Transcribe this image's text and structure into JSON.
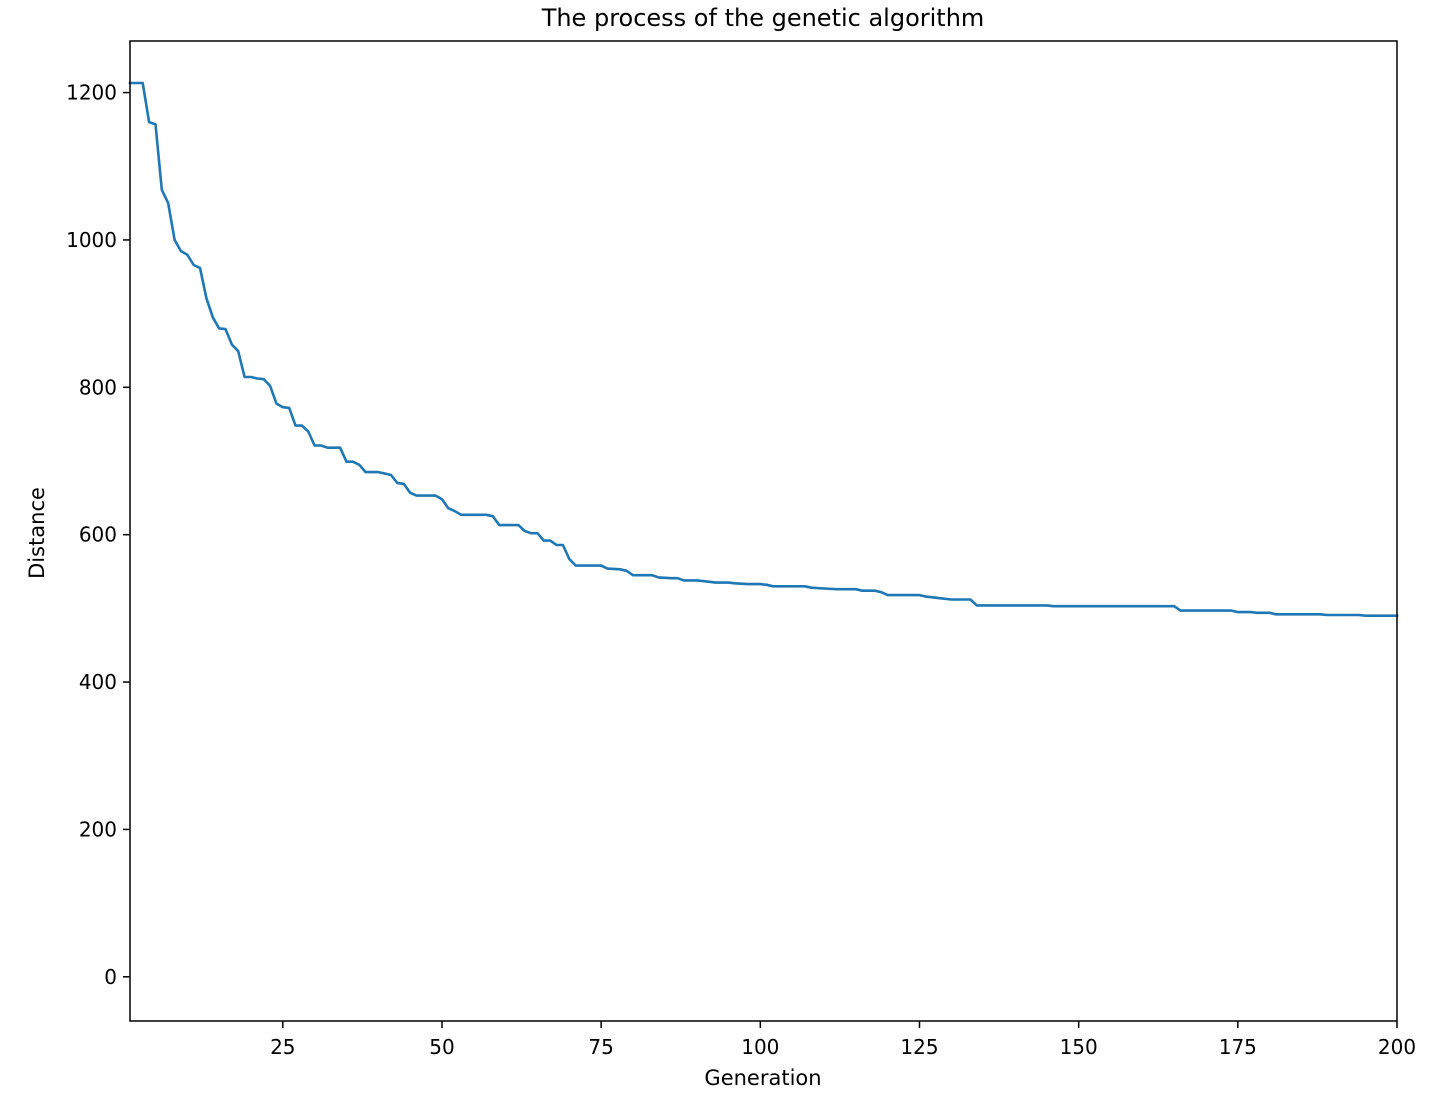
{
  "chart_data": {
    "type": "line",
    "title": "The process of the genetic algorithm",
    "xlabel": "Generation",
    "ylabel": "Distance",
    "xlim": [
      1,
      200
    ],
    "ylim": [
      -60,
      1270
    ],
    "x_ticks": [
      25,
      50,
      75,
      100,
      125,
      150,
      175,
      200
    ],
    "y_ticks": [
      0,
      200,
      400,
      600,
      800,
      1000,
      1200
    ],
    "x_tick_labels": [
      "25",
      "50",
      "75",
      "100",
      "125",
      "150",
      "175",
      "200"
    ],
    "y_tick_labels": [
      "0",
      "200",
      "400",
      "600",
      "800",
      "1000",
      "1200"
    ],
    "grid": false,
    "legend": "none",
    "series": [
      {
        "color": "#1f77b4",
        "x": [
          1,
          3,
          4,
          5,
          6,
          7,
          8,
          9,
          10,
          11,
          12,
          13,
          14,
          15,
          16,
          17,
          18,
          19,
          20,
          21,
          22,
          23,
          24,
          25,
          26,
          27,
          28,
          29,
          30,
          31,
          32,
          33,
          34,
          35,
          36,
          37,
          38,
          39,
          40,
          41,
          42,
          43,
          44,
          45,
          46,
          48,
          49,
          50,
          51,
          52,
          53,
          55,
          57,
          58,
          59,
          60,
          62,
          63,
          64,
          65,
          66,
          67,
          68,
          69,
          70,
          71,
          72,
          74,
          75,
          76,
          78,
          79,
          80,
          82,
          83,
          84,
          86,
          87,
          88,
          90,
          91,
          93,
          95,
          96,
          98,
          100,
          101,
          102,
          103,
          105,
          107,
          108,
          110,
          112,
          115,
          116,
          118,
          119,
          120,
          121,
          123,
          125,
          126,
          127,
          128,
          130,
          133,
          134,
          136,
          140,
          145,
          146,
          150,
          155,
          160,
          165,
          166,
          168,
          170,
          174,
          175,
          177,
          178,
          180,
          181,
          183,
          188,
          189,
          194,
          195,
          200
        ],
        "y": [
          1213,
          1213,
          1160,
          1157,
          1068,
          1050,
          1000,
          985,
          980,
          966,
          962,
          921,
          895,
          880,
          879,
          858,
          849,
          814,
          814,
          812,
          811,
          802,
          778,
          773,
          772,
          748,
          748,
          740,
          721,
          721,
          718,
          718,
          718,
          699,
          699,
          695,
          685,
          685,
          685,
          683,
          681,
          670,
          669,
          657,
          653,
          653,
          653,
          648,
          636,
          632,
          627,
          627,
          627,
          625,
          613,
          613,
          613,
          605,
          602,
          602,
          592,
          592,
          586,
          586,
          567,
          558,
          558,
          558,
          558,
          554,
          553,
          551,
          545,
          545,
          545,
          542,
          541,
          541,
          538,
          538,
          537,
          535,
          535,
          534,
          533,
          533,
          532,
          530,
          530,
          530,
          530,
          528,
          527,
          526,
          526,
          524,
          524,
          522,
          518,
          518,
          518,
          518,
          516,
          515,
          514,
          512,
          512,
          504,
          504,
          504,
          504,
          503,
          503,
          503,
          503,
          503,
          497,
          497,
          497,
          497,
          495,
          495,
          494,
          494,
          492,
          492,
          492,
          491,
          491,
          490,
          490
        ]
      }
    ]
  }
}
